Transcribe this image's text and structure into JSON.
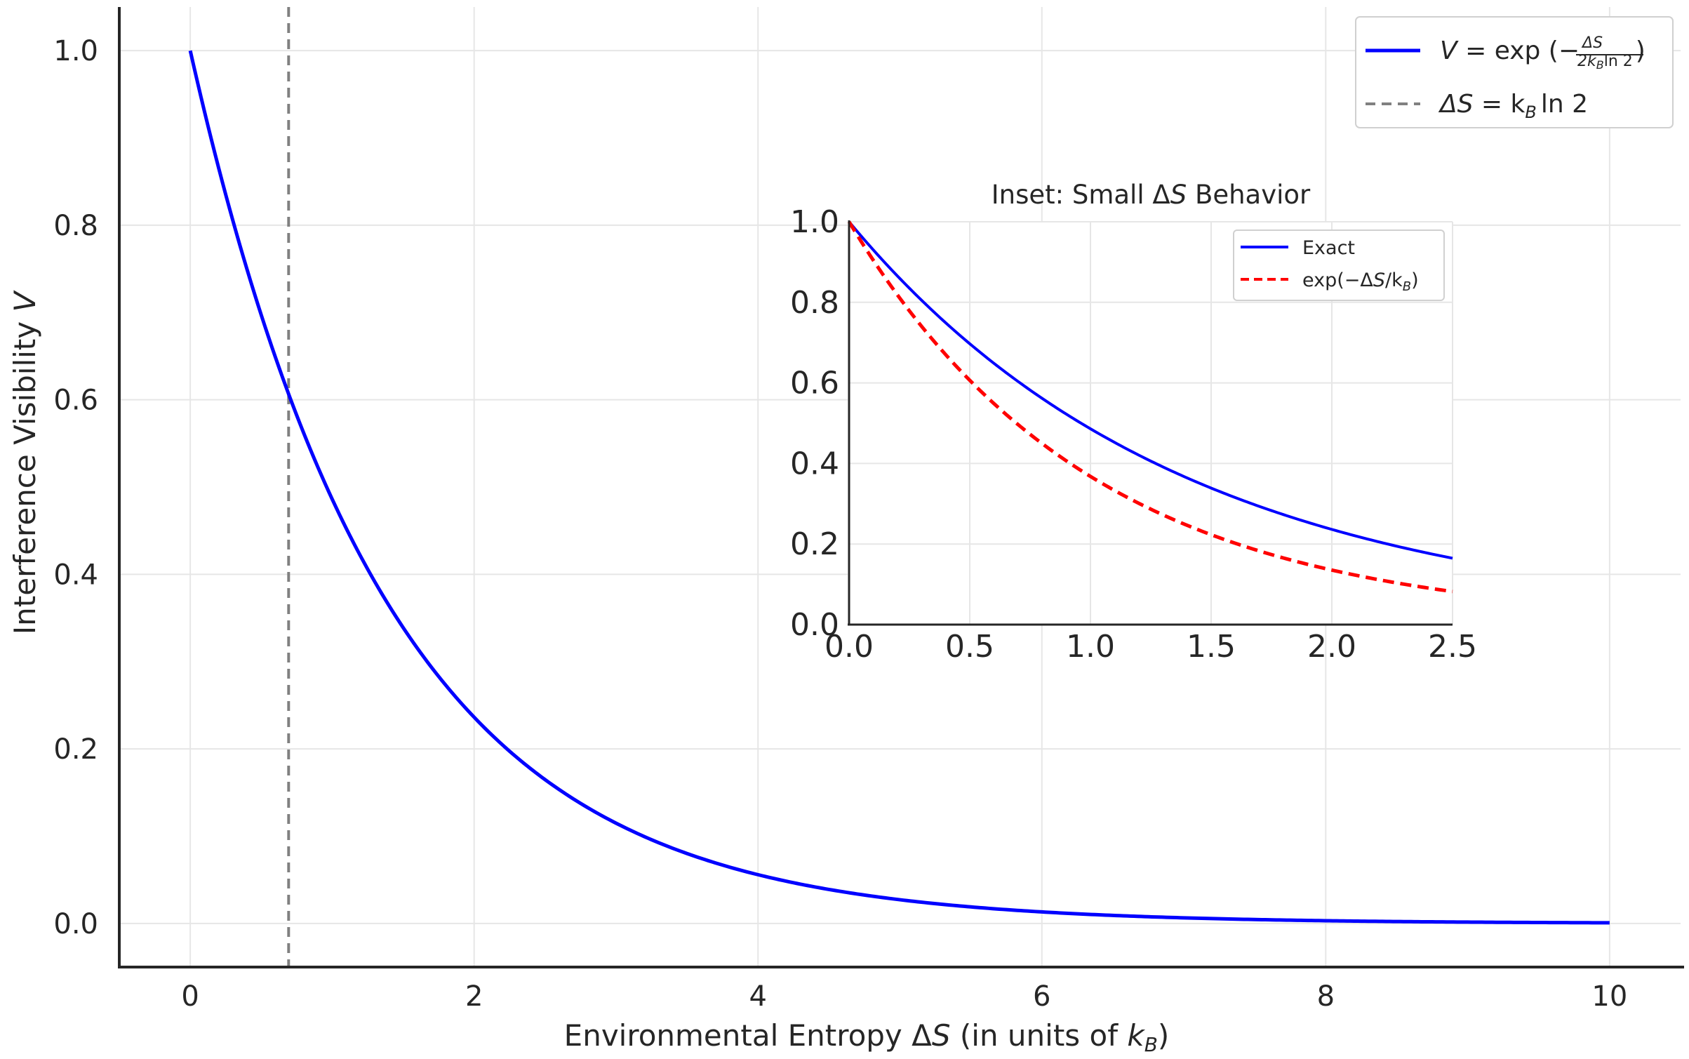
{
  "chart_data": [
    {
      "id": "main",
      "type": "line",
      "xlabel": "Environmental Entropy ΔS (in units of k_B)",
      "ylabel": "Interference Visibility V",
      "xlim": [
        -0.5,
        10.5
      ],
      "ylim": [
        -0.05,
        1.05
      ],
      "xticks": [
        0,
        2,
        4,
        6,
        8,
        10
      ],
      "xtick_labels": [
        "0",
        "2",
        "4",
        "6",
        "8",
        "10"
      ],
      "yticks": [
        0.0,
        0.2,
        0.4,
        0.6,
        0.8,
        1.0
      ],
      "ytick_labels": [
        "0.0",
        "0.2",
        "0.4",
        "0.6",
        "0.8",
        "1.0"
      ],
      "grid": true,
      "legend_position": "top-right",
      "series": [
        {
          "name": "V = exp(−ΔS / 2k_B ln 2)",
          "style": "solid",
          "color": "#0000ff",
          "x": [
            0,
            0.25,
            0.5,
            0.75,
            1.0,
            1.25,
            1.5,
            1.75,
            2.0,
            2.5,
            3.0,
            3.5,
            4.0,
            4.5,
            5.0,
            5.5,
            6.0,
            6.5,
            7.0,
            7.5,
            8.0,
            8.5,
            9.0,
            9.5,
            10.0
          ],
          "values": [
            1.0,
            0.835,
            0.697,
            0.582,
            0.486,
            0.406,
            0.339,
            0.283,
            0.236,
            0.165,
            0.115,
            0.08,
            0.056,
            0.039,
            0.027,
            0.019,
            0.013,
            0.009,
            0.006,
            0.004,
            0.003,
            0.002,
            0.002,
            0.001,
            0.001
          ]
        },
        {
          "name": "ΔS = k_B ln 2",
          "style": "dashed",
          "color": "#808080",
          "orientation": "vertical",
          "x_value": 0.693
        }
      ],
      "legend": [
        {
          "prefix": "V",
          "mid": " = exp (−",
          "frac_num": "ΔS",
          "frac_den": "2k",
          "frac_den_sub": "B",
          "frac_den_tail": "ln 2",
          "suffix": ")"
        },
        {
          "prefix": "ΔS",
          "mid": " = k",
          "sub": "B",
          "suffix": "ln 2"
        }
      ],
      "xlabel_parts": {
        "pre": "Environmental Entropy Δ",
        "ital": "S",
        "mid": " (in units of ",
        "ital2": "k",
        "sub": "B",
        "post": ")"
      },
      "ylabel_parts": {
        "pre": "Interference Visibility ",
        "ital": "V"
      }
    },
    {
      "id": "inset",
      "type": "line",
      "title": "Inset: Small ΔS Behavior",
      "title_parts": {
        "pre": "Inset: Small Δ",
        "ital": "S",
        "post": " Behavior"
      },
      "xlim": [
        0.0,
        2.5
      ],
      "ylim": [
        0.0,
        1.0
      ],
      "xticks": [
        0.0,
        0.5,
        1.0,
        1.5,
        2.0,
        2.5
      ],
      "xtick_labels": [
        "0.0",
        "0.5",
        "1.0",
        "1.5",
        "2.0",
        "2.5"
      ],
      "yticks": [
        0.0,
        0.2,
        0.4,
        0.6,
        0.8,
        1.0
      ],
      "ytick_labels": [
        "0.0",
        "0.2",
        "0.4",
        "0.6",
        "0.8",
        "1.0"
      ],
      "grid": true,
      "legend_position": "top-right",
      "series": [
        {
          "name": "Exact",
          "style": "solid",
          "color": "#0000ff",
          "x": [
            0,
            0.25,
            0.5,
            0.75,
            1.0,
            1.25,
            1.5,
            1.75,
            2.0,
            2.25,
            2.5
          ],
          "values": [
            1.0,
            0.835,
            0.697,
            0.582,
            0.486,
            0.406,
            0.339,
            0.283,
            0.236,
            0.197,
            0.165
          ]
        },
        {
          "name": "exp(−ΔS/k_B)",
          "style": "dashed",
          "color": "#ff0000",
          "x": [
            0,
            0.25,
            0.5,
            0.75,
            1.0,
            1.25,
            1.5,
            1.75,
            2.0,
            2.25,
            2.5
          ],
          "values": [
            1.0,
            0.779,
            0.607,
            0.472,
            0.368,
            0.287,
            0.223,
            0.174,
            0.135,
            0.105,
            0.082
          ]
        }
      ],
      "legend": [
        {
          "label": "Exact"
        },
        {
          "pre": "exp(−Δ",
          "ital": "S",
          "mid": "/k",
          "sub": "B",
          "post": ")"
        }
      ]
    }
  ]
}
